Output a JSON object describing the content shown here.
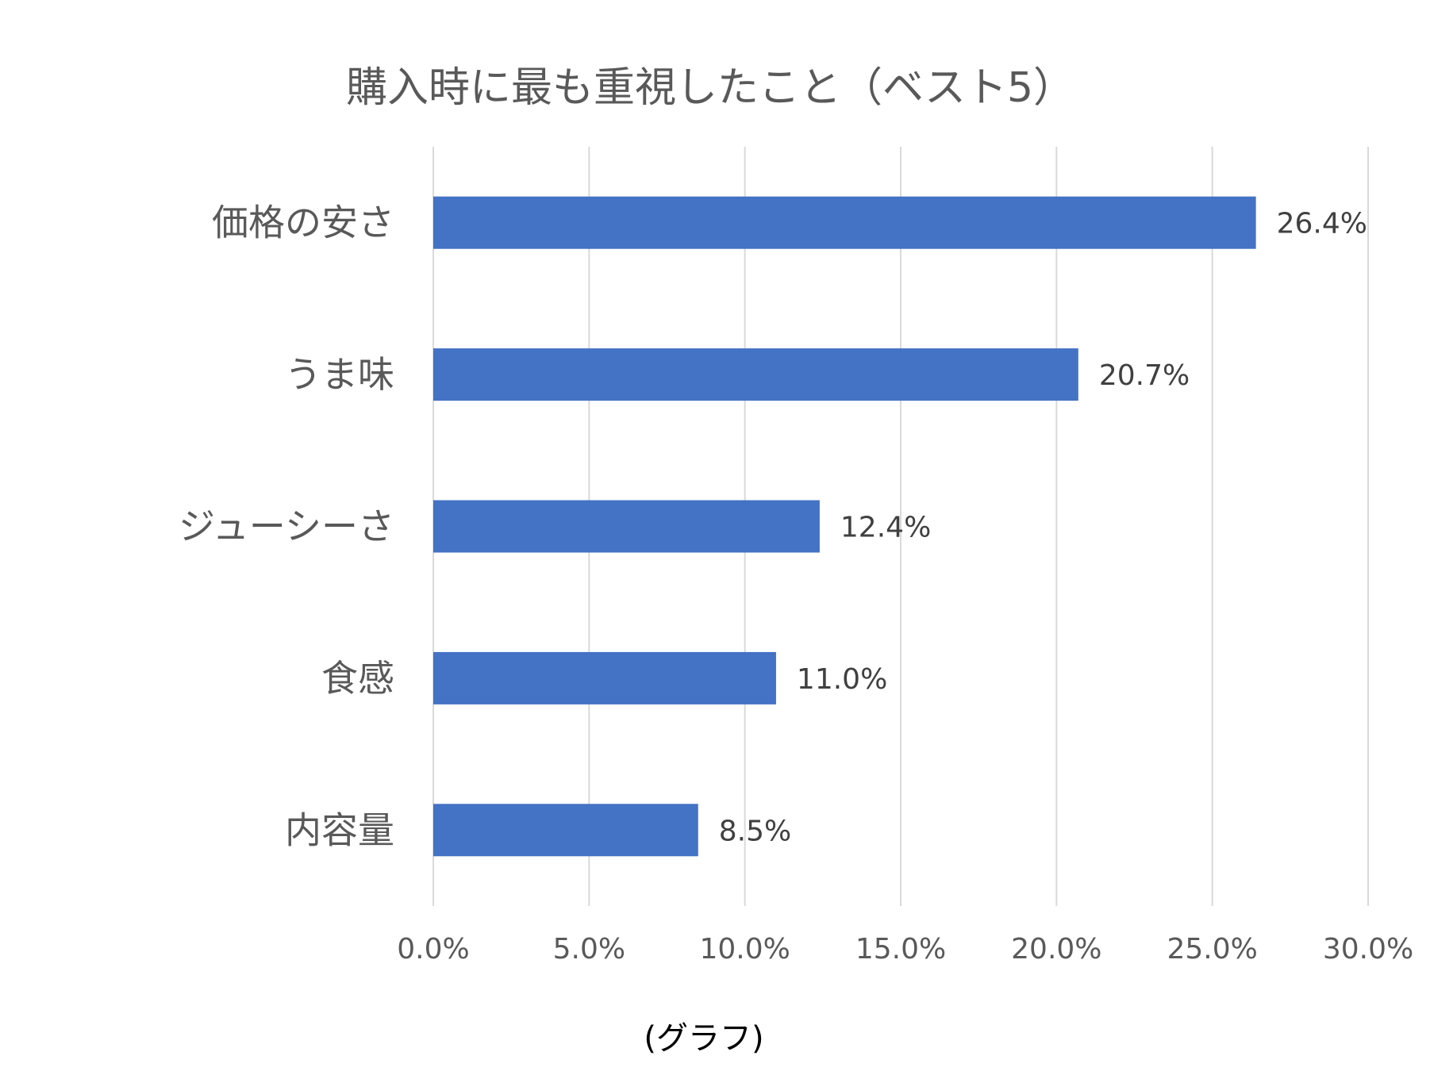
{
  "chart_data": {
    "type": "bar",
    "orientation": "horizontal",
    "title": "購入時に最も重視したこと（ベスト5）",
    "categories": [
      "価格の安さ",
      "うま味",
      "ジューシーさ",
      "食感",
      "内容量"
    ],
    "values": [
      26.4,
      20.7,
      12.4,
      11.0,
      8.5
    ],
    "data_labels": [
      "26.4%",
      "20.7%",
      "12.4%",
      "11.0%",
      "8.5%"
    ],
    "xlim": [
      0,
      30
    ],
    "x_ticks": [
      0,
      5,
      10,
      15,
      20,
      25,
      30
    ],
    "x_tick_labels": [
      "0.0%",
      "5.0%",
      "10.0%",
      "15.0%",
      "20.0%",
      "25.0%",
      "30.0%"
    ],
    "grid": true,
    "bar_color": "#4472C4",
    "grid_color": "#D9D9D9"
  },
  "caption": "(グラフ)"
}
